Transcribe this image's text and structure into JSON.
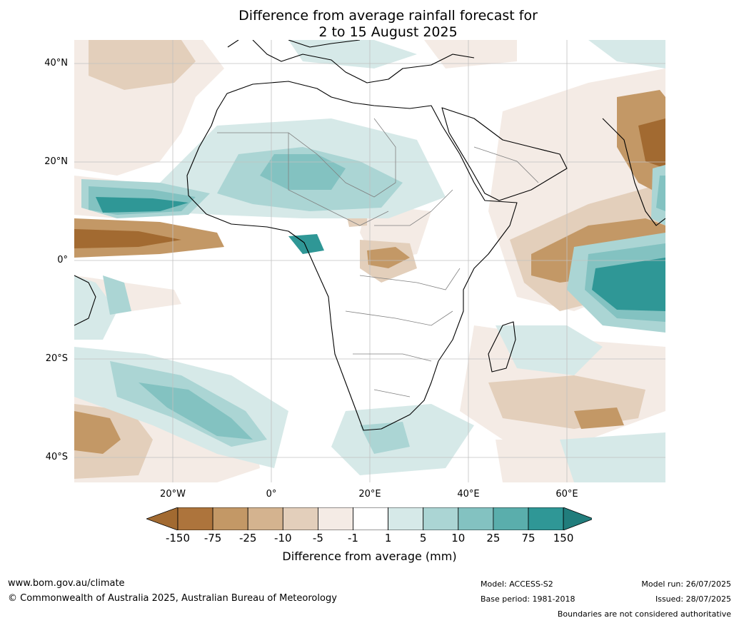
{
  "title": {
    "line1": "Difference from average rainfall forecast for",
    "line2": "2 to 15 August 2025"
  },
  "map": {
    "region": "Africa",
    "lat_labels": [
      "40°N",
      "20°N",
      "0°",
      "20°S",
      "40°S"
    ],
    "lon_labels": [
      "20°W",
      "0°",
      "20°E",
      "40°E",
      "60°E"
    ],
    "colors": {
      "ocean_bg": "#ffffff",
      "coastline": "#000000",
      "borders": "#808080",
      "gridlines": "#c0c0c0"
    }
  },
  "colorbar": {
    "tick_labels": [
      "-150",
      "-75",
      "-25",
      "-10",
      "-5",
      "-1",
      "1",
      "5",
      "10",
      "25",
      "75",
      "150"
    ],
    "colors": [
      "#a26a31",
      "#ad743c",
      "#c39866",
      "#d4b38f",
      "#e3cfbb",
      "#f4ebe5",
      "#ffffff",
      "#d6e9e8",
      "#abd5d4",
      "#83c2c1",
      "#5aaeac",
      "#2f9796",
      "#217d7c"
    ],
    "label": "Difference from average (mm)"
  },
  "footer": {
    "website": "www.bom.gov.au/climate",
    "copyright": "© Commonwealth of Australia 2025, Australian Bureau of Meteorology",
    "model": "Model: ACCESS-S2",
    "base_period": "Base period: 1981-2018",
    "model_run": "Model run: 26/07/2025",
    "issued": "Issued: 28/07/2025",
    "disclaimer": "Boundaries are not considered authoritative"
  }
}
